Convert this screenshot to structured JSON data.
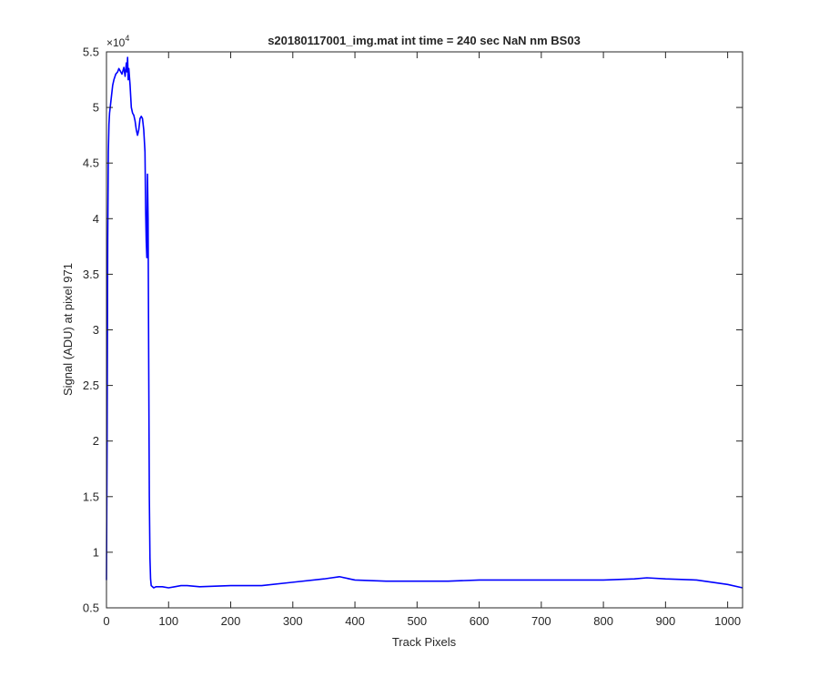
{
  "chart_data": {
    "type": "line",
    "title": "s20180117001_img.mat int time = 240 sec  NaN nm BS03",
    "xlabel": "Track Pixels",
    "ylabel": "Signal (ADU) at pixel 971",
    "y_exponent_label": "×10",
    "y_exponent_power": "4",
    "xlim": [
      0,
      1024
    ],
    "ylim": [
      5000,
      55000
    ],
    "x_ticks": [
      0,
      100,
      200,
      300,
      400,
      500,
      600,
      700,
      800,
      900,
      1000
    ],
    "x_tick_labels": [
      "0",
      "100",
      "200",
      "300",
      "400",
      "500",
      "600",
      "700",
      "800",
      "900",
      "1000"
    ],
    "y_ticks": [
      5000,
      10000,
      15000,
      20000,
      25000,
      30000,
      35000,
      40000,
      45000,
      50000,
      55000
    ],
    "y_tick_labels": [
      "0.5",
      "1",
      "1.5",
      "2",
      "2.5",
      "3",
      "3.5",
      "4",
      "4.5",
      "5",
      "5.5"
    ],
    "grid": false,
    "series": [
      {
        "color": "#0000ff",
        "x": [
          0,
          1,
          2,
          3,
          4,
          5,
          6,
          8,
          10,
          12,
          15,
          18,
          20,
          22,
          25,
          28,
          30,
          32,
          33,
          34,
          35,
          36,
          38,
          40,
          42,
          44,
          46,
          48,
          50,
          52,
          54,
          56,
          58,
          60,
          62,
          63,
          64,
          65,
          66,
          67,
          68,
          69,
          70,
          71,
          72,
          74,
          76,
          80,
          90,
          100,
          110,
          120,
          130,
          150,
          200,
          250,
          300,
          350,
          375,
          400,
          450,
          500,
          550,
          600,
          650,
          700,
          750,
          800,
          850,
          870,
          900,
          950,
          1000,
          1024
        ],
        "y": [
          7500,
          20000,
          38000,
          46000,
          48500,
          49500,
          50000,
          51000,
          52000,
          52500,
          53000,
          53200,
          53500,
          53300,
          53000,
          53600,
          52800,
          54000,
          53200,
          54500,
          52500,
          53500,
          52000,
          50000,
          49500,
          49300,
          48800,
          48000,
          47500,
          48000,
          49000,
          49200,
          49000,
          48000,
          46000,
          41000,
          38000,
          36500,
          44000,
          40000,
          27000,
          15000,
          9500,
          7600,
          7000,
          6900,
          6800,
          6900,
          6900,
          6800,
          6900,
          7000,
          7000,
          6900,
          7000,
          7000,
          7300,
          7600,
          7800,
          7500,
          7400,
          7400,
          7400,
          7500,
          7500,
          7500,
          7500,
          7500,
          7600,
          7700,
          7600,
          7500,
          7100,
          6800
        ]
      }
    ]
  }
}
